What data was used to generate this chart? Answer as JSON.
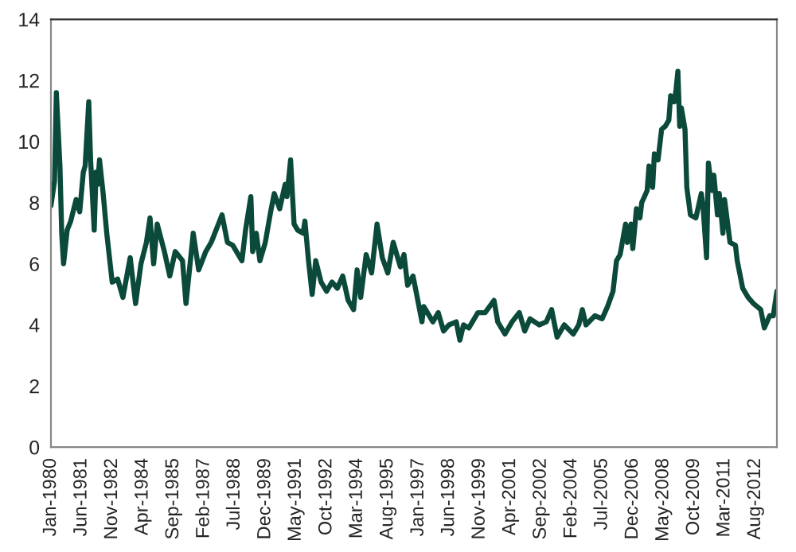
{
  "chart_data": {
    "type": "line",
    "x": [
      "1980-01",
      "1980-03",
      "1980-04",
      "1980-06",
      "1980-07",
      "1980-08",
      "1980-10",
      "1980-12",
      "1981-03",
      "1981-05",
      "1981-07",
      "1981-08",
      "1981-10",
      "1981-11",
      "1982-01",
      "1982-02",
      "1982-03",
      "1982-04",
      "1982-06",
      "1982-08",
      "1982-11",
      "1983-02",
      "1983-05",
      "1983-09",
      "1983-12",
      "1984-03",
      "1984-06",
      "1984-08",
      "1984-10",
      "1984-12",
      "1985-04",
      "1985-07",
      "1985-10",
      "1986-02",
      "1986-04",
      "1986-08",
      "1986-11",
      "1987-03",
      "1987-06",
      "1987-12",
      "1988-03",
      "1988-06",
      "1988-11",
      "1989-01",
      "1989-04",
      "1989-05",
      "1989-07",
      "1989-09",
      "1989-12",
      "1990-03",
      "1990-05",
      "1990-08",
      "1990-11",
      "1990-12",
      "1991-02",
      "1991-04",
      "1991-06",
      "1991-09",
      "1991-10",
      "1991-12",
      "1992-02",
      "1992-04",
      "1992-07",
      "1992-10",
      "1993-01",
      "1993-04",
      "1993-07",
      "1993-10",
      "1994-01",
      "1994-03",
      "1994-05",
      "1994-08",
      "1994-11",
      "1995-02",
      "1995-05",
      "1995-08",
      "1995-11",
      "1996-03",
      "1996-05",
      "1996-07",
      "1996-10",
      "1996-12",
      "1997-03",
      "1997-04",
      "1997-09",
      "1997-12",
      "1998-03",
      "1998-06",
      "1998-10",
      "1998-12",
      "1999-02",
      "1999-05",
      "1999-10",
      "2000-02",
      "2000-07",
      "2000-09",
      "2001-01",
      "2001-05",
      "2001-09",
      "2001-12",
      "2002-03",
      "2002-08",
      "2002-12",
      "2003-03",
      "2003-06",
      "2003-10",
      "2004-03",
      "2004-06",
      "2004-08",
      "2004-10",
      "2005-03",
      "2005-07",
      "2005-10",
      "2006-01",
      "2006-03",
      "2006-05",
      "2006-08",
      "2006-09",
      "2006-11",
      "2006-12",
      "2007-02",
      "2007-04",
      "2007-05",
      "2007-08",
      "2007-09",
      "2007-11",
      "2007-12",
      "2008-02",
      "2008-04",
      "2008-06",
      "2008-08",
      "2008-09",
      "2008-11",
      "2008-12",
      "2009-01",
      "2009-02",
      "2009-03",
      "2009-05",
      "2009-06",
      "2009-08",
      "2009-11",
      "2010-02",
      "2010-03",
      "2010-05",
      "2010-06",
      "2010-08",
      "2010-09",
      "2010-11",
      "2010-12",
      "2011-02",
      "2011-03",
      "2011-06",
      "2011-09",
      "2011-10",
      "2012-01",
      "2012-04",
      "2012-07",
      "2012-11",
      "2013-01",
      "2013-04",
      "2013-06",
      "2013-08"
    ],
    "series": [
      {
        "color": "#0b4a3a",
        "values": [
          7.9,
          8.7,
          11.6,
          9.2,
          7.0,
          6.0,
          7.1,
          7.4,
          8.1,
          7.7,
          9.0,
          9.2,
          11.3,
          9.4,
          7.1,
          9.0,
          8.6,
          9.4,
          8.3,
          7.0,
          5.4,
          5.5,
          4.9,
          6.2,
          4.7,
          6.0,
          6.7,
          7.5,
          6.0,
          7.3,
          6.4,
          5.6,
          6.4,
          6.1,
          4.7,
          7.0,
          5.8,
          6.4,
          6.7,
          7.6,
          6.7,
          6.6,
          6.1,
          7.1,
          8.2,
          6.4,
          7.0,
          6.1,
          6.7,
          7.7,
          8.3,
          7.8,
          8.6,
          8.2,
          9.4,
          7.3,
          7.1,
          7.0,
          7.4,
          6.1,
          5.0,
          6.1,
          5.4,
          5.1,
          5.4,
          5.2,
          5.6,
          4.8,
          4.5,
          5.8,
          4.9,
          6.3,
          5.7,
          7.3,
          6.2,
          5.7,
          6.7,
          5.9,
          6.3,
          5.3,
          5.6,
          5.0,
          4.1,
          4.6,
          4.1,
          4.4,
          3.8,
          4.0,
          4.1,
          3.5,
          4.0,
          3.9,
          4.4,
          4.4,
          4.8,
          4.1,
          3.7,
          4.1,
          4.4,
          3.8,
          4.2,
          4.0,
          4.1,
          4.5,
          3.6,
          4.0,
          3.7,
          4.0,
          4.5,
          4.0,
          4.3,
          4.2,
          4.6,
          5.1,
          6.1,
          6.3,
          7.3,
          6.7,
          7.3,
          6.5,
          7.8,
          7.5,
          8.0,
          8.4,
          9.2,
          8.5,
          9.6,
          9.4,
          10.4,
          10.5,
          10.7,
          11.5,
          11.3,
          11.7,
          12.3,
          10.5,
          11.1,
          10.4,
          8.5,
          7.6,
          7.5,
          8.3,
          7.9,
          6.2,
          9.3,
          8.4,
          8.9,
          7.6,
          8.3,
          7.0,
          8.1,
          6.7,
          6.6,
          6.1,
          5.2,
          4.9,
          4.7,
          4.5,
          3.9,
          4.3,
          4.3,
          5.1
        ]
      }
    ],
    "xlim": [
      "1980-01",
      "2013-08"
    ],
    "xticks": [
      {
        "value": "1980-01",
        "label": "Jan-1980"
      },
      {
        "value": "1981-06",
        "label": "Jun-1981"
      },
      {
        "value": "1982-11",
        "label": "Nov-1982"
      },
      {
        "value": "1984-04",
        "label": "Apr-1984"
      },
      {
        "value": "1985-09",
        "label": "Sep-1985"
      },
      {
        "value": "1987-02",
        "label": "Feb-1987"
      },
      {
        "value": "1988-07",
        "label": "Jul-1988"
      },
      {
        "value": "1989-12",
        "label": "Dec-1989"
      },
      {
        "value": "1991-05",
        "label": "May-1991"
      },
      {
        "value": "1992-10",
        "label": "Oct-1992"
      },
      {
        "value": "1994-03",
        "label": "Mar-1994"
      },
      {
        "value": "1995-08",
        "label": "Aug-1995"
      },
      {
        "value": "1997-01",
        "label": "Jan-1997"
      },
      {
        "value": "1998-06",
        "label": "Jun-1998"
      },
      {
        "value": "1999-11",
        "label": "Nov-1999"
      },
      {
        "value": "2001-04",
        "label": "Apr-2001"
      },
      {
        "value": "2002-09",
        "label": "Sep-2002"
      },
      {
        "value": "2004-02",
        "label": "Feb-2004"
      },
      {
        "value": "2005-07",
        "label": "Jul-2005"
      },
      {
        "value": "2006-12",
        "label": "Dec-2006"
      },
      {
        "value": "2008-05",
        "label": "May-2008"
      },
      {
        "value": "2009-10",
        "label": "Oct-2009"
      },
      {
        "value": "2011-03",
        "label": "Mar-2011"
      },
      {
        "value": "2012-08",
        "label": "Aug-2012"
      }
    ],
    "ylim": [
      0,
      14
    ],
    "yticks": [
      0,
      2,
      4,
      6,
      8,
      10,
      12,
      14
    ],
    "line_style": "solid"
  }
}
